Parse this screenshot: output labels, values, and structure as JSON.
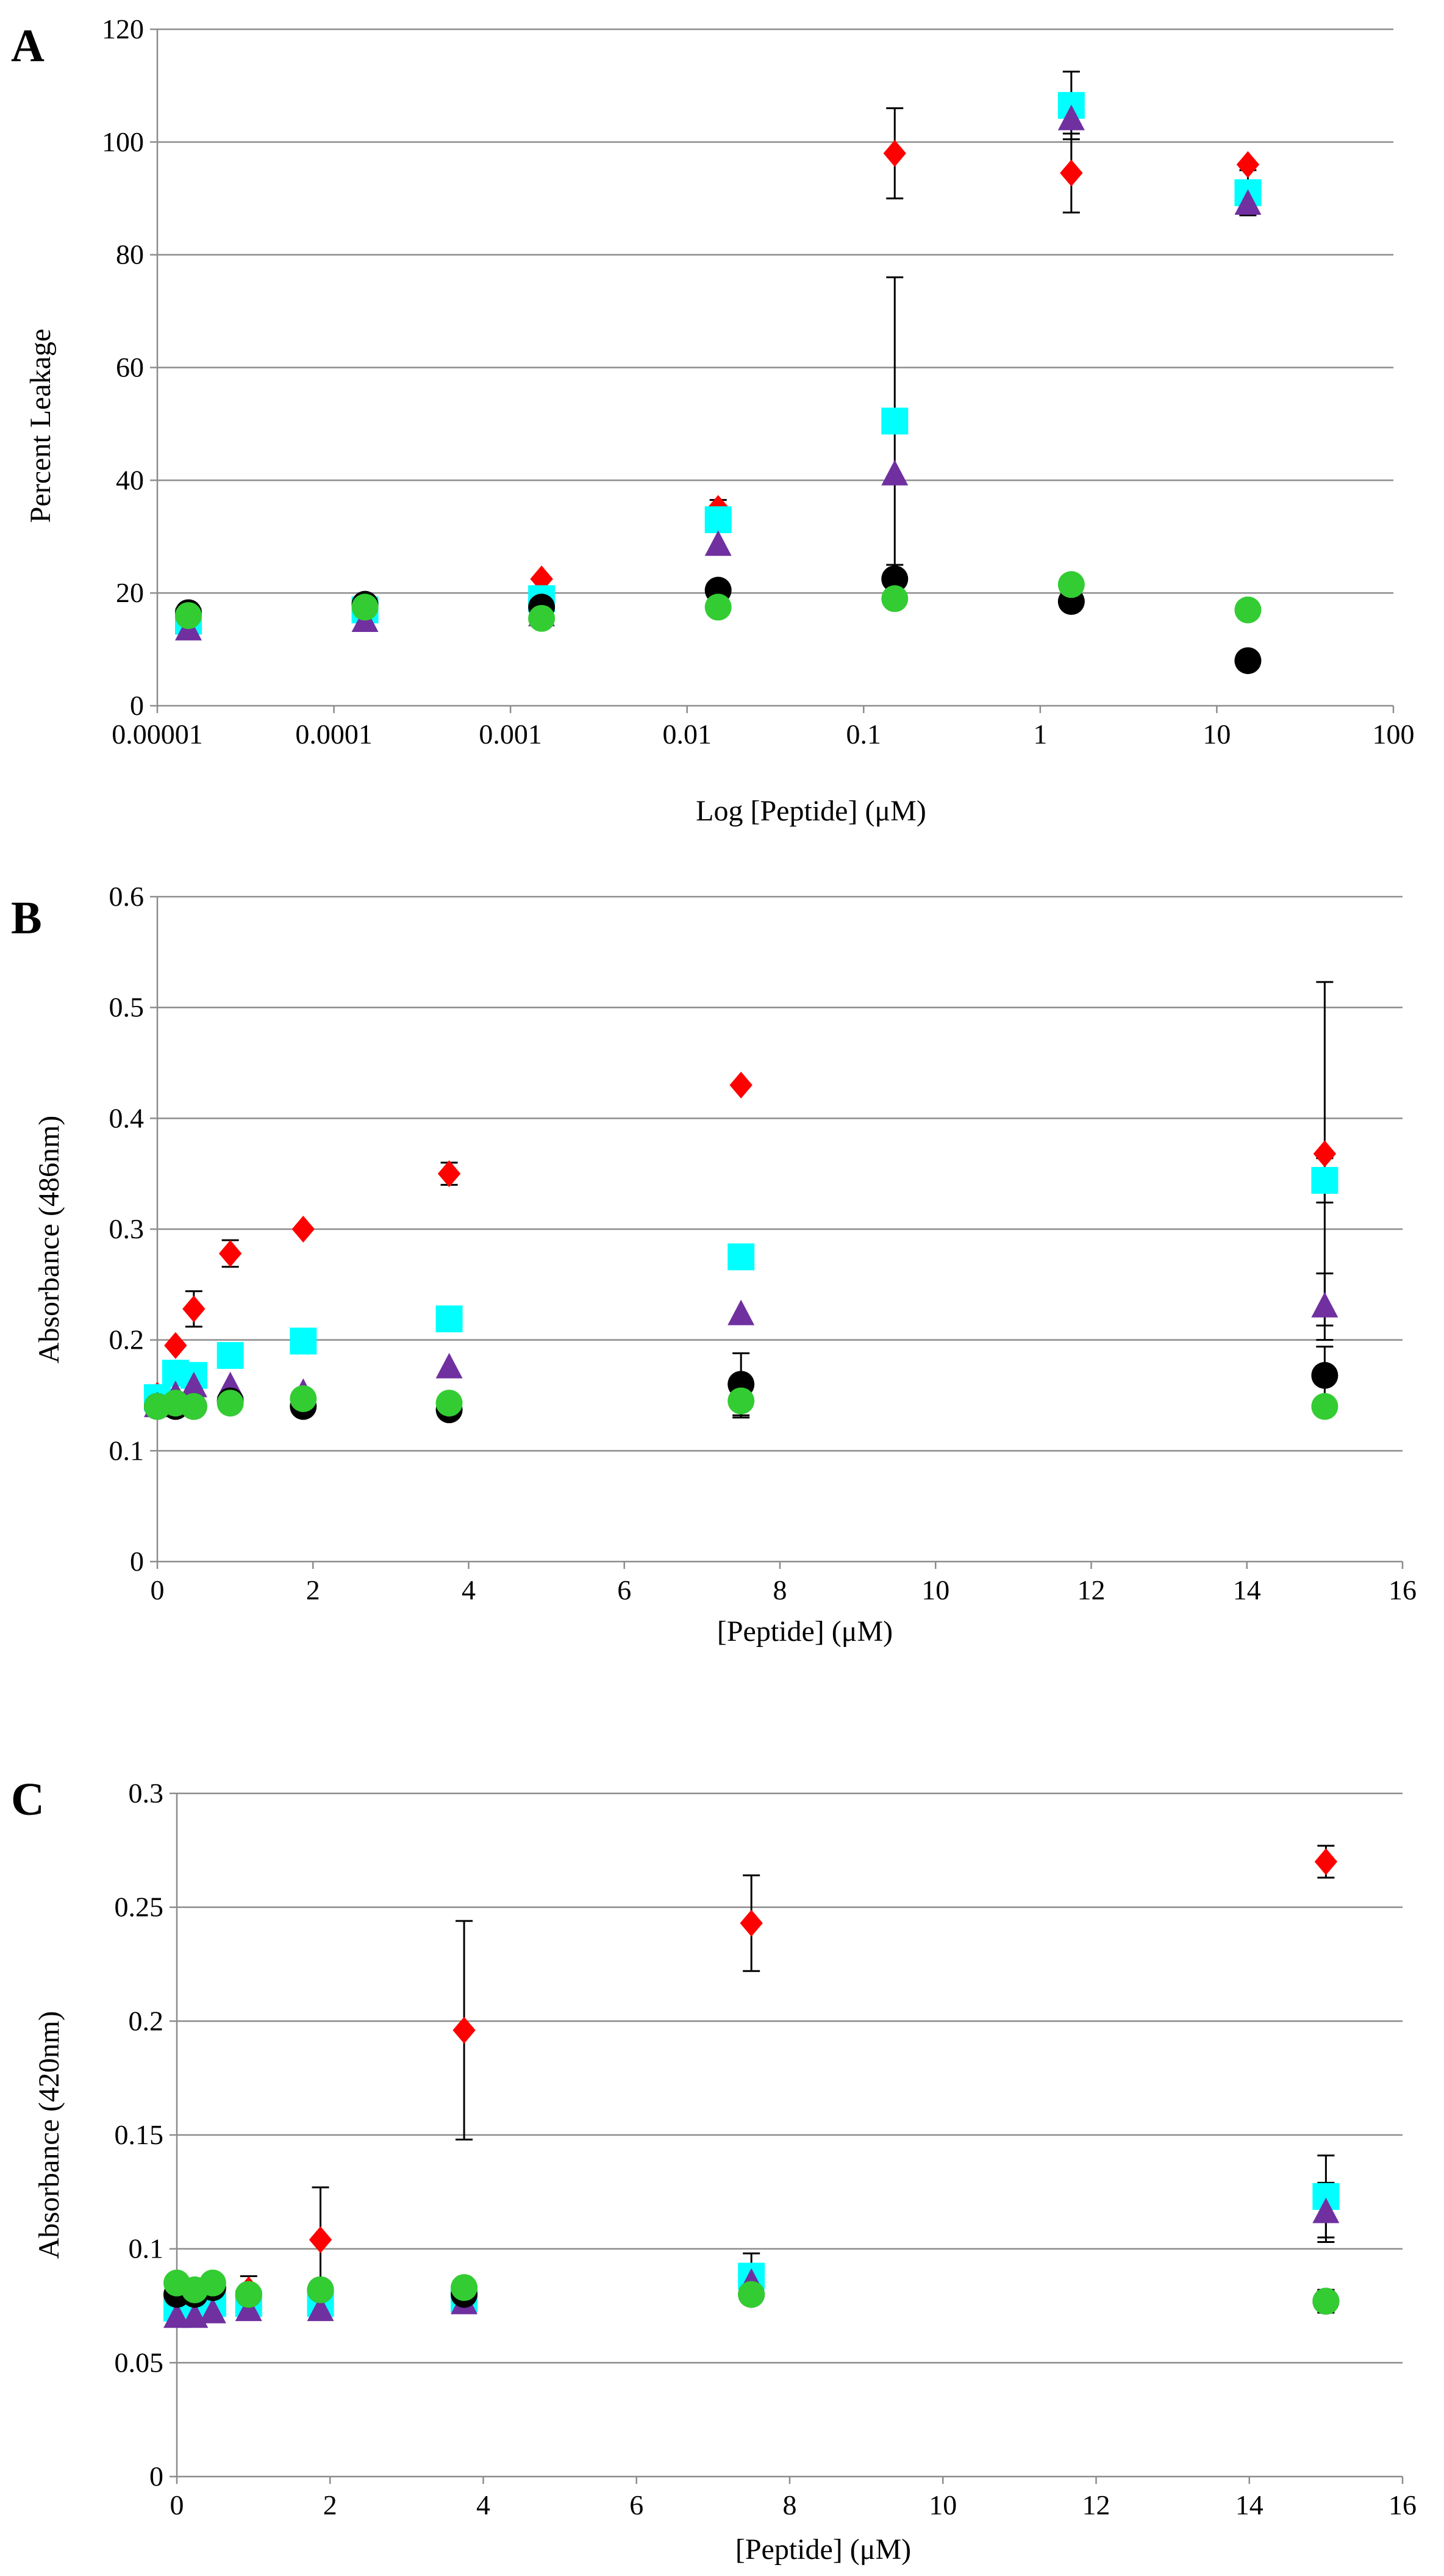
{
  "chart_data": [
    {
      "panel": "A",
      "type": "scatter",
      "xscale": "log",
      "xlim": [
        1e-05,
        100
      ],
      "ylim": [
        0,
        120
      ],
      "xticks": [
        "0.00001",
        "0.0001",
        "0.001",
        "0.01",
        "0.1",
        "1",
        "10",
        "100"
      ],
      "yticks": [
        "0",
        "20",
        "40",
        "60",
        "80",
        "100",
        "120"
      ],
      "xlabel": "Log [Peptide] (μM)",
      "ylabel": "Percent Leakage",
      "grid": "horizontal",
      "series": [
        {
          "color": "#ff0000",
          "marker": "diamond",
          "points": [
            {
              "x": 1.5e-05,
              "y": 15
            },
            {
              "x": 0.00015,
              "y": 16
            },
            {
              "x": 0.0015,
              "y": 22.5
            },
            {
              "x": 0.015,
              "y": 35,
              "err": 1.5
            },
            {
              "x": 0.15,
              "y": 98,
              "err": 8
            },
            {
              "x": 1.5,
              "y": 94.5,
              "err": 7
            },
            {
              "x": 15,
              "y": 96
            }
          ]
        },
        {
          "color": "#00ffff",
          "marker": "square",
          "points": [
            {
              "x": 1.5e-05,
              "y": 15
            },
            {
              "x": 0.00015,
              "y": 17
            },
            {
              "x": 0.0015,
              "y": 19
            },
            {
              "x": 0.015,
              "y": 33
            },
            {
              "x": 0.15,
              "y": 50.5,
              "err": 25.5
            },
            {
              "x": 1.5,
              "y": 106.5,
              "err": 6
            },
            {
              "x": 15,
              "y": 91,
              "err": 4
            }
          ]
        },
        {
          "color": "#7030a0",
          "marker": "triangle",
          "points": [
            {
              "x": 1.5e-05,
              "y": 13.5
            },
            {
              "x": 0.00015,
              "y": 15
            },
            {
              "x": 0.0015,
              "y": 16
            },
            {
              "x": 0.015,
              "y": 28.5
            },
            {
              "x": 0.15,
              "y": 41
            },
            {
              "x": 1.5,
              "y": 104
            },
            {
              "x": 15,
              "y": 89
            }
          ]
        },
        {
          "color": "#000000",
          "marker": "circle",
          "points": [
            {
              "x": 1.5e-05,
              "y": 16.5
            },
            {
              "x": 0.00015,
              "y": 18
            },
            {
              "x": 0.0015,
              "y": 17.5
            },
            {
              "x": 0.015,
              "y": 20.5
            },
            {
              "x": 0.15,
              "y": 22.5
            },
            {
              "x": 1.5,
              "y": 18.5
            },
            {
              "x": 15,
              "y": 8
            }
          ]
        },
        {
          "color": "#33cc33",
          "marker": "circle",
          "points": [
            {
              "x": 1.5e-05,
              "y": 16
            },
            {
              "x": 0.00015,
              "y": 17.5
            },
            {
              "x": 0.0015,
              "y": 15.5
            },
            {
              "x": 0.015,
              "y": 17.5
            },
            {
              "x": 0.15,
              "y": 19
            },
            {
              "x": 1.5,
              "y": 21.5
            },
            {
              "x": 15,
              "y": 17
            }
          ]
        }
      ]
    },
    {
      "panel": "B",
      "type": "scatter",
      "xscale": "linear",
      "xlim": [
        0,
        16
      ],
      "ylim": [
        0,
        0.6
      ],
      "xticks": [
        "0",
        "2",
        "4",
        "6",
        "8",
        "10",
        "12",
        "14",
        "16"
      ],
      "yticks": [
        "0",
        "0.1",
        "0.2",
        "0.3",
        "0.4",
        "0.5",
        "0.6"
      ],
      "xlabel": "[Peptide] (μM)",
      "ylabel": "Absorbance (486nm)",
      "grid": "horizontal",
      "series": [
        {
          "color": "#ff0000",
          "marker": "diamond",
          "points": [
            {
              "x": 0,
              "y": 0.15
            },
            {
              "x": 0.234,
              "y": 0.195
            },
            {
              "x": 0.469,
              "y": 0.228,
              "err": 0.016
            },
            {
              "x": 0.9375,
              "y": 0.278,
              "err": 0.012
            },
            {
              "x": 1.875,
              "y": 0.3
            },
            {
              "x": 3.75,
              "y": 0.35,
              "err": 0.01
            },
            {
              "x": 7.5,
              "y": 0.43
            },
            {
              "x": 15,
              "y": 0.368,
              "err": 0.155
            }
          ]
        },
        {
          "color": "#00ffff",
          "marker": "square",
          "points": [
            {
              "x": 0,
              "y": 0.148
            },
            {
              "x": 0.234,
              "y": 0.17
            },
            {
              "x": 0.469,
              "y": 0.168
            },
            {
              "x": 0.9375,
              "y": 0.186
            },
            {
              "x": 1.875,
              "y": 0.199
            },
            {
              "x": 3.75,
              "y": 0.219
            },
            {
              "x": 7.5,
              "y": 0.275
            },
            {
              "x": 15,
              "y": 0.344,
              "err": 0.02
            }
          ]
        },
        {
          "color": "#7030a0",
          "marker": "triangle",
          "points": [
            {
              "x": 0,
              "y": 0.14
            },
            {
              "x": 0.234,
              "y": 0.15
            },
            {
              "x": 0.469,
              "y": 0.158
            },
            {
              "x": 0.9375,
              "y": 0.158
            },
            {
              "x": 1.875,
              "y": 0.152
            },
            {
              "x": 3.75,
              "y": 0.175
            },
            {
              "x": 7.5,
              "y": 0.223
            },
            {
              "x": 15,
              "y": 0.23,
              "err": 0.03
            }
          ]
        },
        {
          "color": "#000000",
          "marker": "circle",
          "points": [
            {
              "x": 0,
              "y": 0.14
            },
            {
              "x": 0.234,
              "y": 0.14
            },
            {
              "x": 0.469,
              "y": 0.14
            },
            {
              "x": 0.9375,
              "y": 0.145
            },
            {
              "x": 1.875,
              "y": 0.14
            },
            {
              "x": 3.75,
              "y": 0.137
            },
            {
              "x": 7.5,
              "y": 0.16,
              "err": 0.028
            },
            {
              "x": 15,
              "y": 0.168,
              "err": 0.026
            }
          ]
        },
        {
          "color": "#33cc33",
          "marker": "circle",
          "points": [
            {
              "x": 0,
              "y": 0.14
            },
            {
              "x": 0.234,
              "y": 0.143
            },
            {
              "x": 0.469,
              "y": 0.14
            },
            {
              "x": 0.9375,
              "y": 0.143
            },
            {
              "x": 1.875,
              "y": 0.147
            },
            {
              "x": 3.75,
              "y": 0.143
            },
            {
              "x": 7.5,
              "y": 0.145,
              "err": 0.015
            },
            {
              "x": 15,
              "y": 0.14
            }
          ]
        }
      ]
    },
    {
      "panel": "C",
      "type": "scatter",
      "xscale": "linear",
      "xlim": [
        0,
        16
      ],
      "ylim": [
        0,
        0.3
      ],
      "xticks": [
        "0",
        "2",
        "4",
        "6",
        "8",
        "10",
        "12",
        "14",
        "16"
      ],
      "yticks": [
        "0",
        "0.05",
        "0.1",
        "0.15",
        "0.2",
        "0.25",
        "0.3"
      ],
      "xlabel": "[Peptide] (μM)",
      "ylabel": "Absorbance (420nm)",
      "grid": "horizontal",
      "series": [
        {
          "color": "#ff0000",
          "marker": "diamond",
          "points": [
            {
              "x": 0,
              "y": 0.08
            },
            {
              "x": 0.234,
              "y": 0.08
            },
            {
              "x": 0.469,
              "y": 0.082
            },
            {
              "x": 0.9375,
              "y": 0.082,
              "err": 0.006
            },
            {
              "x": 1.875,
              "y": 0.104,
              "err": 0.023
            },
            {
              "x": 3.75,
              "y": 0.196,
              "err": 0.048
            },
            {
              "x": 7.5,
              "y": 0.243,
              "err": 0.021
            },
            {
              "x": 15,
              "y": 0.27,
              "err": 0.007
            }
          ]
        },
        {
          "color": "#00ffff",
          "marker": "square",
          "points": [
            {
              "x": 0,
              "y": 0.074
            },
            {
              "x": 0.234,
              "y": 0.074
            },
            {
              "x": 0.469,
              "y": 0.076
            },
            {
              "x": 0.9375,
              "y": 0.076
            },
            {
              "x": 1.875,
              "y": 0.076
            },
            {
              "x": 3.75,
              "y": 0.078
            },
            {
              "x": 7.5,
              "y": 0.088,
              "err": 0.01
            },
            {
              "x": 15,
              "y": 0.123,
              "err": 0.018
            }
          ]
        },
        {
          "color": "#7030a0",
          "marker": "triangle",
          "points": [
            {
              "x": 0,
              "y": 0.07
            },
            {
              "x": 0.234,
              "y": 0.07
            },
            {
              "x": 0.469,
              "y": 0.072
            },
            {
              "x": 0.9375,
              "y": 0.073
            },
            {
              "x": 1.875,
              "y": 0.073
            },
            {
              "x": 3.75,
              "y": 0.076
            },
            {
              "x": 7.5,
              "y": 0.085
            },
            {
              "x": 15,
              "y": 0.116,
              "err": 0.013
            }
          ]
        },
        {
          "color": "#000000",
          "marker": "circle",
          "points": [
            {
              "x": 0,
              "y": 0.08
            },
            {
              "x": 0.234,
              "y": 0.08
            },
            {
              "x": 0.469,
              "y": 0.083
            },
            {
              "x": 0.9375,
              "y": 0.08
            },
            {
              "x": 1.875,
              "y": 0.082
            },
            {
              "x": 3.75,
              "y": 0.08
            },
            {
              "x": 7.5,
              "y": 0.08
            },
            {
              "x": 15,
              "y": 0.077,
              "err": 0.005
            }
          ]
        },
        {
          "color": "#33cc33",
          "marker": "circle",
          "points": [
            {
              "x": 0,
              "y": 0.085
            },
            {
              "x": 0.234,
              "y": 0.082
            },
            {
              "x": 0.469,
              "y": 0.085
            },
            {
              "x": 0.9375,
              "y": 0.08
            },
            {
              "x": 1.875,
              "y": 0.082
            },
            {
              "x": 3.75,
              "y": 0.083
            },
            {
              "x": 7.5,
              "y": 0.08
            },
            {
              "x": 15,
              "y": 0.077
            }
          ]
        }
      ]
    }
  ]
}
